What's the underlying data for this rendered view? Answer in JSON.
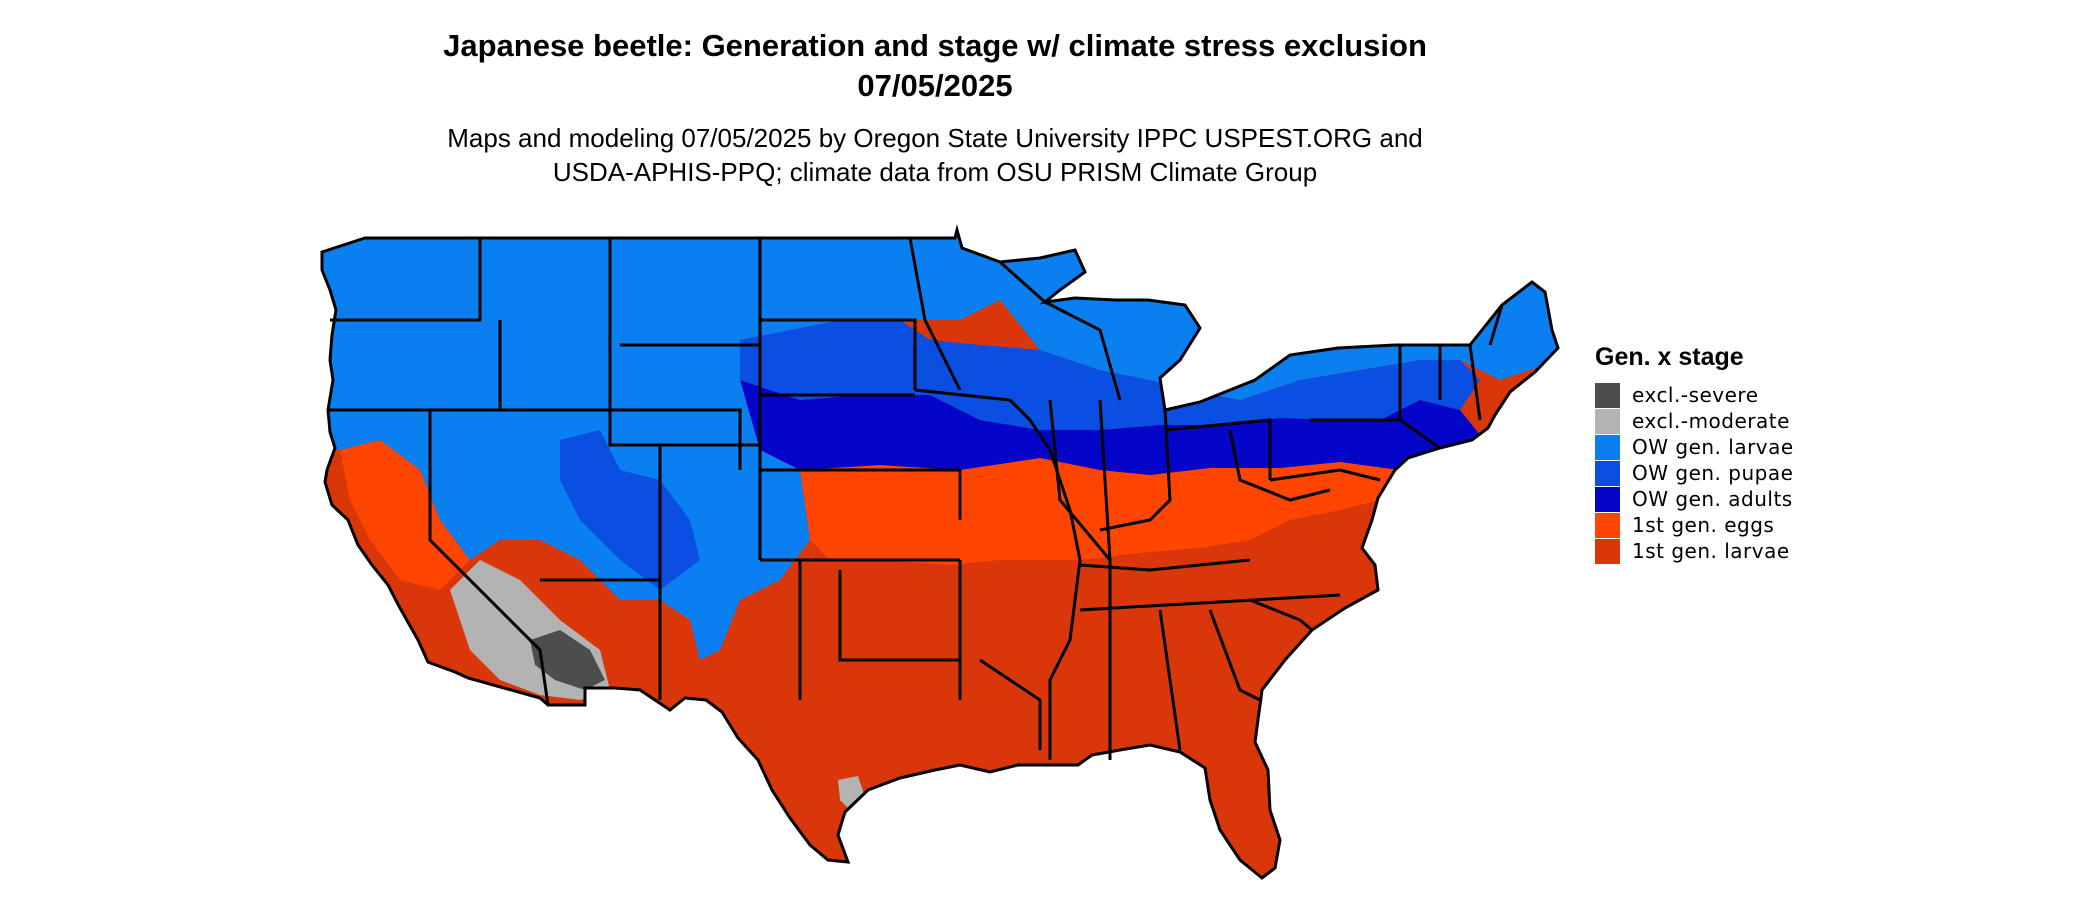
{
  "title": {
    "line1": "Japanese beetle: Generation and stage w/ climate stress exclusion",
    "line2": "07/05/2025"
  },
  "subtitle": {
    "line1": "Maps and modeling 07/05/2025 by Oregon State University IPPC USPEST.ORG and",
    "line2": "USDA-APHIS-PPQ; climate data from OSU PRISM Climate Group"
  },
  "map": {
    "region": "contiguous United States",
    "colors": {
      "excl_severe": "#4d4d4d",
      "excl_moderate": "#b3b3b3",
      "ow_larvae": "#0a7ff0",
      "ow_pupae": "#0b4ee2",
      "ow_adults": "#0504c9",
      "gen1_eggs": "#ff4500",
      "gen1_larvae": "#d9360a",
      "border": "#000000"
    }
  },
  "legend": {
    "title": "Gen. x stage",
    "items": [
      {
        "label": "excl.-severe",
        "color": "#4d4d4d"
      },
      {
        "label": "excl.-moderate",
        "color": "#b3b3b3"
      },
      {
        "label": "OW gen. larvae",
        "color": "#0a7ff0"
      },
      {
        "label": "OW gen. pupae",
        "color": "#0b4ee2"
      },
      {
        "label": "OW gen. adults",
        "color": "#0504c9"
      },
      {
        "label": "1st gen. eggs",
        "color": "#ff4500"
      },
      {
        "label": "1st gen. larvae",
        "color": "#d9360a"
      }
    ]
  }
}
